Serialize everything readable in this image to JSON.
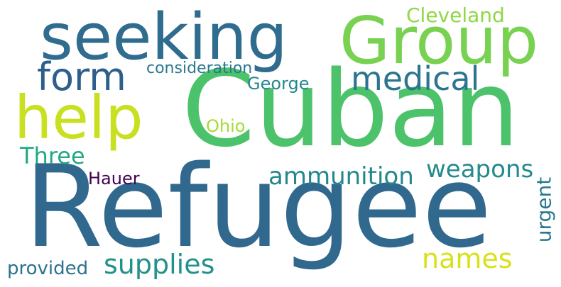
{
  "words": {
    "cuban": {
      "text": "Cuban",
      "color": "#4cc26a"
    },
    "refugee": {
      "text": "Refugee",
      "color": "#31688e"
    },
    "seeking": {
      "text": "seeking",
      "color": "#2f6c8e"
    },
    "group": {
      "text": "Group",
      "color": "#79d151"
    },
    "help": {
      "text": "help",
      "color": "#c8e020"
    },
    "form": {
      "text": "form",
      "color": "#2e5f8a"
    },
    "medical": {
      "text": "medical",
      "color": "#2b758e"
    },
    "cleveland": {
      "text": "Cleveland",
      "color": "#8fd744"
    },
    "consideration": {
      "text": "consideration",
      "color": "#2a788e"
    },
    "george": {
      "text": "George",
      "color": "#24878e"
    },
    "ohio": {
      "text": "Ohio",
      "color": "#a8db34"
    },
    "three": {
      "text": "Three",
      "color": "#22a884"
    },
    "ammunition": {
      "text": "ammunition",
      "color": "#23888e"
    },
    "weapons": {
      "text": "weapons",
      "color": "#238a8d"
    },
    "hauer": {
      "text": "Hauer",
      "color": "#440154"
    },
    "urgent": {
      "text": "urgent",
      "color": "#2a788e"
    },
    "names": {
      "text": "names",
      "color": "#d8e219"
    },
    "supplies": {
      "text": "supplies",
      "color": "#21918c"
    },
    "provided": {
      "text": "provided",
      "color": "#2c728e"
    }
  }
}
